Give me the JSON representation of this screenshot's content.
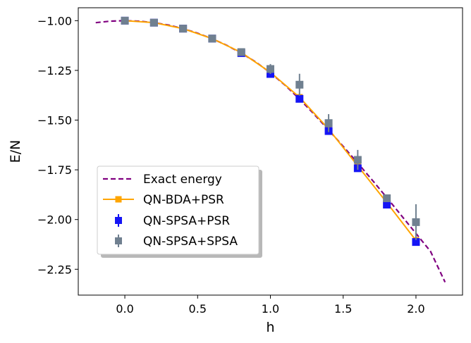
{
  "chart_data": {
    "type": "line",
    "title": "",
    "xlabel": "h",
    "ylabel": "E/N",
    "xlim": [
      -0.32,
      2.32
    ],
    "ylim": [
      -2.38,
      -0.935
    ],
    "xticks": [
      0.0,
      0.5,
      1.0,
      1.5,
      2.0
    ],
    "xtick_labels": [
      "0.0",
      "0.5",
      "1.0",
      "1.5",
      "2.0"
    ],
    "yticks": [
      -1.0,
      -1.25,
      -1.5,
      -1.75,
      -2.0,
      -2.25
    ],
    "ytick_labels": [
      "−1.00",
      "−1.25",
      "−1.50",
      "−1.75",
      "−2.00",
      "−2.25"
    ],
    "grid": false,
    "legend_position": "lower-left",
    "series": [
      {
        "name": "Exact energy",
        "style": "dashed-line",
        "color": "#800080",
        "x": [
          -0.2,
          -0.1,
          0.0,
          0.1,
          0.2,
          0.3,
          0.4,
          0.5,
          0.6,
          0.7,
          0.8,
          0.9,
          1.0,
          1.1,
          1.2,
          1.3,
          1.4,
          1.5,
          1.6,
          1.7,
          1.8,
          1.9,
          2.0,
          2.1,
          2.2
        ],
        "y": [
          -1.01,
          -1.0025,
          -1.0,
          -1.0025,
          -1.01,
          -1.022,
          -1.04,
          -1.063,
          -1.091,
          -1.124,
          -1.163,
          -1.208,
          -1.262,
          -1.324,
          -1.394,
          -1.47,
          -1.55,
          -1.632,
          -1.716,
          -1.802,
          -1.89,
          -1.98,
          -2.07,
          -2.16,
          -2.315
        ]
      },
      {
        "name": "QN-BDA+PSR",
        "style": "line-square",
        "color": "#FFA500",
        "x": [
          0.0,
          0.2,
          0.4,
          0.6,
          0.8,
          1.0,
          1.2,
          1.4,
          1.6,
          1.8,
          2.0
        ],
        "y": [
          -1.0,
          -1.01,
          -1.04,
          -1.09,
          -1.16,
          -1.26,
          -1.385,
          -1.545,
          -1.73,
          -1.915,
          -2.105
        ]
      },
      {
        "name": "QN-SPSA+PSR",
        "style": "errorbar-square",
        "color": "#1515F5",
        "x": [
          0.0,
          0.2,
          0.4,
          0.6,
          0.8,
          1.0,
          1.2,
          1.4,
          1.6,
          1.8,
          2.0
        ],
        "y": [
          -1.0,
          -1.01,
          -1.04,
          -1.09,
          -1.163,
          -1.268,
          -1.393,
          -1.555,
          -1.742,
          -1.925,
          -2.113
        ],
        "yerr": [
          0.004,
          0.004,
          0.004,
          0.004,
          0.004,
          0.01,
          0.012,
          0.012,
          0.012,
          0.01,
          0.01
        ]
      },
      {
        "name": "QN-SPSA+SPSA",
        "style": "errorbar-square",
        "color": "#708090",
        "x": [
          0.0,
          0.2,
          0.4,
          0.6,
          0.8,
          1.0,
          1.2,
          1.4,
          1.6,
          1.8,
          2.0
        ],
        "y": [
          -1.0,
          -1.01,
          -1.04,
          -1.09,
          -1.158,
          -1.243,
          -1.322,
          -1.515,
          -1.7,
          -1.893,
          -2.013
        ],
        "yerr": [
          0.004,
          0.004,
          0.004,
          0.004,
          0.01,
          0.025,
          0.055,
          0.045,
          0.05,
          0.012,
          0.09
        ]
      }
    ]
  }
}
